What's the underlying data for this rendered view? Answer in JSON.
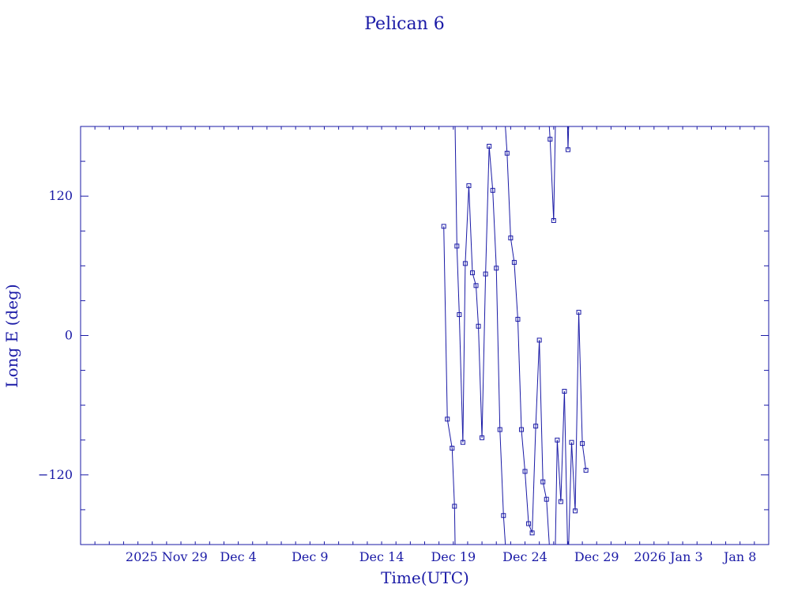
{
  "chart_data": {
    "type": "line",
    "title": "Pelican 6",
    "xlabel": "Time(UTC)",
    "ylabel": "Long E (deg)",
    "ylim": [
      -180,
      180
    ],
    "xlim": [
      "2025-11-23",
      "2026-01-10"
    ],
    "x_tick_labels": [
      "2025 Nov 29",
      "Dec 4",
      "Dec 9",
      "Dec 14",
      "Dec 19",
      "Dec 24",
      "Dec 29",
      "2026 Jan 3",
      "Jan 8"
    ],
    "y_ticks": [
      -120,
      0,
      120
    ],
    "color": "#1a1aa6",
    "marker": "square",
    "wraps_at_limits": true,
    "series": [
      {
        "points": [
          [
            "2025-12-18 08:00",
            94
          ],
          [
            "2025-12-18 14:00",
            -72
          ],
          [
            "2025-12-18 22:00",
            -97
          ],
          [
            "2025-12-19 02:00",
            -147
          ],
          [
            "2025-12-19 06:00",
            77
          ],
          [
            "2025-12-19 10:00",
            18
          ],
          [
            "2025-12-19 16:00",
            -92
          ],
          [
            "2025-12-19 20:00",
            62
          ],
          [
            "2025-12-20 02:00",
            129
          ],
          [
            "2025-12-20 08:00",
            54
          ],
          [
            "2025-12-20 14:00",
            43
          ],
          [
            "2025-12-20 18:00",
            8
          ],
          [
            "2025-12-21 00:00",
            -88
          ],
          [
            "2025-12-21 06:00",
            53
          ],
          [
            "2025-12-21 12:00",
            163
          ],
          [
            "2025-12-21 18:00",
            125
          ],
          [
            "2025-12-22 00:00",
            58
          ],
          [
            "2025-12-22 06:00",
            -81
          ],
          [
            "2025-12-22 12:00",
            -155
          ],
          [
            "2025-12-22 18:00",
            157
          ],
          [
            "2025-12-23 00:00",
            84
          ],
          [
            "2025-12-23 06:00",
            63
          ],
          [
            "2025-12-23 12:00",
            14
          ],
          [
            "2025-12-23 18:00",
            -81
          ],
          [
            "2025-12-24 00:00",
            -117
          ],
          [
            "2025-12-24 06:00",
            -162
          ],
          [
            "2025-12-24 12:00",
            -170
          ],
          [
            "2025-12-24 18:00",
            -78
          ],
          [
            "2025-12-25 00:00",
            -4
          ],
          [
            "2025-12-25 06:00",
            -126
          ],
          [
            "2025-12-25 12:00",
            -141
          ],
          [
            "2025-12-25 18:00",
            169
          ],
          [
            "2025-12-26 00:00",
            99
          ],
          [
            "2025-12-26 06:00",
            -90
          ],
          [
            "2025-12-26 12:00",
            -143
          ],
          [
            "2025-12-26 18:00",
            -48
          ],
          [
            "2025-12-27 00:00",
            160
          ],
          [
            "2025-12-27 06:00",
            -92
          ],
          [
            "2025-12-27 12:00",
            -151
          ],
          [
            "2025-12-27 18:00",
            20
          ],
          [
            "2025-12-28 00:00",
            -93
          ],
          [
            "2025-12-28 06:00",
            -116
          ]
        ]
      }
    ]
  }
}
